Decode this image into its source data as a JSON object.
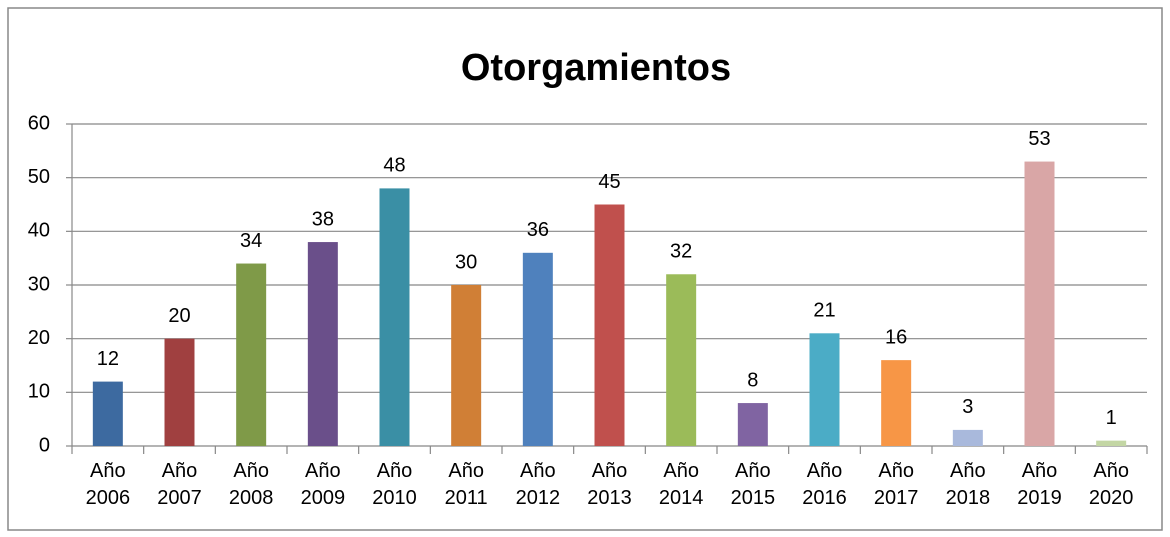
{
  "chart_data": {
    "type": "bar",
    "title": "Otorgamientos",
    "categories": [
      "Año 2006",
      "Año 2007",
      "Año 2008",
      "Año 2009",
      "Año 2010",
      "Año 2011",
      "Año 2012",
      "Año 2013",
      "Año 2014",
      "Año 2015",
      "Año 2016",
      "Año 2017",
      "Año 2018",
      "Año 2019",
      "Año 2020"
    ],
    "values": [
      12,
      20,
      34,
      38,
      48,
      30,
      36,
      45,
      32,
      8,
      21,
      16,
      3,
      53,
      1
    ],
    "colors": [
      "#3d6aa0",
      "#a04040",
      "#7f9a48",
      "#6a4f8a",
      "#3a8fa5",
      "#d07f36",
      "#4f81bd",
      "#c0504d",
      "#9bbb59",
      "#8064a2",
      "#4bacc6",
      "#f79646",
      "#a9b9dc",
      "#d9a6a6",
      "#c3d6a4"
    ],
    "ylim": [
      0,
      60
    ],
    "yticks": [
      0,
      10,
      20,
      30,
      40,
      50,
      60
    ],
    "grid": true
  }
}
